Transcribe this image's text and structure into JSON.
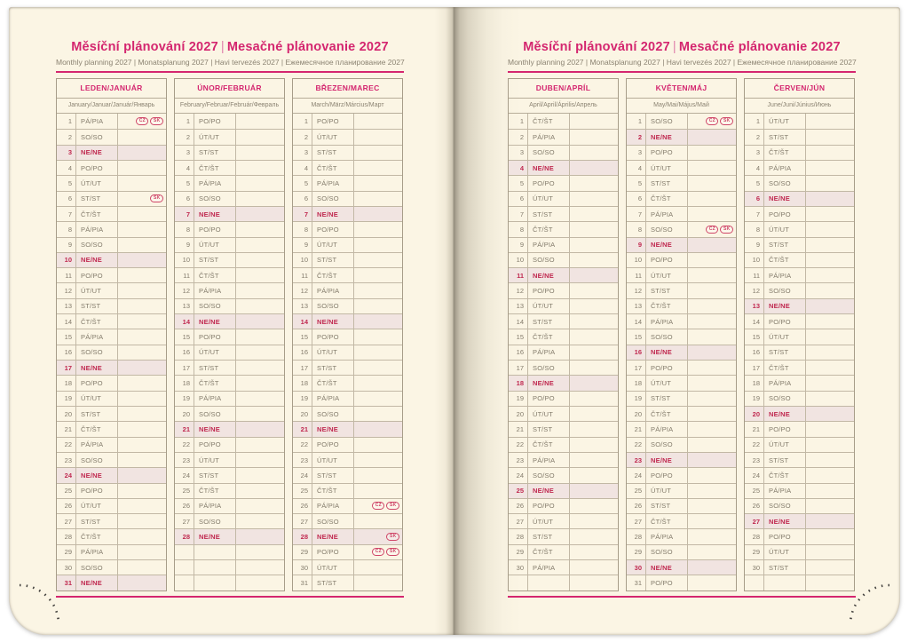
{
  "header": {
    "title_cz": "Měsíční plánování 2027",
    "title_sk": "Mesačné plánovanie 2027",
    "divider": "|",
    "subtitle": "Monthly planning 2027 | Monatsplanung 2027 | Havi tervezés 2027 | Ежемесячное планирование 2027"
  },
  "colors": {
    "accent_pink": "#d4266f",
    "highlight_row_bg": "#f1e4e1",
    "highlight_text": "#c02950",
    "body_text": "#837b6b",
    "grid_border": "#b7ad99",
    "page_background": "#fbf5e4",
    "holiday_badge": "#cf4668"
  },
  "weekday_legend": {
    "monday": "PO/PO",
    "tuesday": "ÚT/UT",
    "wednesday": "ST/ST",
    "thursday": "ČT/ŠT",
    "friday": "PÁ/PIA",
    "saturday": "SO/SO",
    "sunday": "NE/NE"
  },
  "pages": [
    {
      "months": [
        {
          "name": "LEDEN/JANUÁR",
          "subtitle": "January/Januar/Január/Январь",
          "rows": [
            {
              "d": 1,
              "w": "PÁ/PIA",
              "b": [
                "CZ",
                "SK"
              ]
            },
            {
              "d": 2,
              "w": "SO/SO"
            },
            {
              "d": 3,
              "w": "NE/NE",
              "h": 1
            },
            {
              "d": 4,
              "w": "PO/PO"
            },
            {
              "d": 5,
              "w": "ÚT/UT"
            },
            {
              "d": 6,
              "w": "ST/ST",
              "b": [
                "SK"
              ]
            },
            {
              "d": 7,
              "w": "ČT/ŠT"
            },
            {
              "d": 8,
              "w": "PÁ/PIA"
            },
            {
              "d": 9,
              "w": "SO/SO"
            },
            {
              "d": 10,
              "w": "NE/NE",
              "h": 1
            },
            {
              "d": 11,
              "w": "PO/PO"
            },
            {
              "d": 12,
              "w": "ÚT/UT"
            },
            {
              "d": 13,
              "w": "ST/ST"
            },
            {
              "d": 14,
              "w": "ČT/ŠT"
            },
            {
              "d": 15,
              "w": "PÁ/PIA"
            },
            {
              "d": 16,
              "w": "SO/SO"
            },
            {
              "d": 17,
              "w": "NE/NE",
              "h": 1
            },
            {
              "d": 18,
              "w": "PO/PO"
            },
            {
              "d": 19,
              "w": "ÚT/UT"
            },
            {
              "d": 20,
              "w": "ST/ST"
            },
            {
              "d": 21,
              "w": "ČT/ŠT"
            },
            {
              "d": 22,
              "w": "PÁ/PIA"
            },
            {
              "d": 23,
              "w": "SO/SO"
            },
            {
              "d": 24,
              "w": "NE/NE",
              "h": 1
            },
            {
              "d": 25,
              "w": "PO/PO"
            },
            {
              "d": 26,
              "w": "ÚT/UT"
            },
            {
              "d": 27,
              "w": "ST/ST"
            },
            {
              "d": 28,
              "w": "ČT/ŠT"
            },
            {
              "d": 29,
              "w": "PÁ/PIA"
            },
            {
              "d": 30,
              "w": "SO/SO"
            },
            {
              "d": 31,
              "w": "NE/NE",
              "h": 1
            }
          ]
        },
        {
          "name": "ÚNOR/FEBRUÁR",
          "subtitle": "February/Februar/Február/Февраль",
          "rows": [
            {
              "d": 1,
              "w": "PO/PO"
            },
            {
              "d": 2,
              "w": "ÚT/UT"
            },
            {
              "d": 3,
              "w": "ST/ST"
            },
            {
              "d": 4,
              "w": "ČT/ŠT"
            },
            {
              "d": 5,
              "w": "PÁ/PIA"
            },
            {
              "d": 6,
              "w": "SO/SO"
            },
            {
              "d": 7,
              "w": "NE/NE",
              "h": 1
            },
            {
              "d": 8,
              "w": "PO/PO"
            },
            {
              "d": 9,
              "w": "ÚT/UT"
            },
            {
              "d": 10,
              "w": "ST/ST"
            },
            {
              "d": 11,
              "w": "ČT/ŠT"
            },
            {
              "d": 12,
              "w": "PÁ/PIA"
            },
            {
              "d": 13,
              "w": "SO/SO"
            },
            {
              "d": 14,
              "w": "NE/NE",
              "h": 1
            },
            {
              "d": 15,
              "w": "PO/PO"
            },
            {
              "d": 16,
              "w": "ÚT/UT"
            },
            {
              "d": 17,
              "w": "ST/ST"
            },
            {
              "d": 18,
              "w": "ČT/ŠT"
            },
            {
              "d": 19,
              "w": "PÁ/PIA"
            },
            {
              "d": 20,
              "w": "SO/SO"
            },
            {
              "d": 21,
              "w": "NE/NE",
              "h": 1
            },
            {
              "d": 22,
              "w": "PO/PO"
            },
            {
              "d": 23,
              "w": "ÚT/UT"
            },
            {
              "d": 24,
              "w": "ST/ST"
            },
            {
              "d": 25,
              "w": "ČT/ŠT"
            },
            {
              "d": 26,
              "w": "PÁ/PIA"
            },
            {
              "d": 27,
              "w": "SO/SO"
            },
            {
              "d": 28,
              "w": "NE/NE",
              "h": 1
            },
            null,
            null,
            null
          ]
        },
        {
          "name": "BŘEZEN/MAREC",
          "subtitle": "March/März/Március/Март",
          "rows": [
            {
              "d": 1,
              "w": "PO/PO"
            },
            {
              "d": 2,
              "w": "ÚT/UT"
            },
            {
              "d": 3,
              "w": "ST/ST"
            },
            {
              "d": 4,
              "w": "ČT/ŠT"
            },
            {
              "d": 5,
              "w": "PÁ/PIA"
            },
            {
              "d": 6,
              "w": "SO/SO"
            },
            {
              "d": 7,
              "w": "NE/NE",
              "h": 1
            },
            {
              "d": 8,
              "w": "PO/PO"
            },
            {
              "d": 9,
              "w": "ÚT/UT"
            },
            {
              "d": 10,
              "w": "ST/ST"
            },
            {
              "d": 11,
              "w": "ČT/ŠT"
            },
            {
              "d": 12,
              "w": "PÁ/PIA"
            },
            {
              "d": 13,
              "w": "SO/SO"
            },
            {
              "d": 14,
              "w": "NE/NE",
              "h": 1
            },
            {
              "d": 15,
              "w": "PO/PO"
            },
            {
              "d": 16,
              "w": "ÚT/UT"
            },
            {
              "d": 17,
              "w": "ST/ST"
            },
            {
              "d": 18,
              "w": "ČT/ŠT"
            },
            {
              "d": 19,
              "w": "PÁ/PIA"
            },
            {
              "d": 20,
              "w": "SO/SO"
            },
            {
              "d": 21,
              "w": "NE/NE",
              "h": 1
            },
            {
              "d": 22,
              "w": "PO/PO"
            },
            {
              "d": 23,
              "w": "ÚT/UT"
            },
            {
              "d": 24,
              "w": "ST/ST"
            },
            {
              "d": 25,
              "w": "ČT/ŠT"
            },
            {
              "d": 26,
              "w": "PÁ/PIA",
              "b": [
                "CZ",
                "SK"
              ]
            },
            {
              "d": 27,
              "w": "SO/SO"
            },
            {
              "d": 28,
              "w": "NE/NE",
              "h": 1,
              "b": [
                "SK"
              ]
            },
            {
              "d": 29,
              "w": "PO/PO",
              "b": [
                "CZ",
                "SK"
              ]
            },
            {
              "d": 30,
              "w": "ÚT/UT"
            },
            {
              "d": 31,
              "w": "ST/ST"
            }
          ]
        }
      ]
    },
    {
      "months": [
        {
          "name": "DUBEN/APRÍL",
          "subtitle": "April/April/Április/Апрель",
          "rows": [
            {
              "d": 1,
              "w": "ČT/ŠT"
            },
            {
              "d": 2,
              "w": "PÁ/PIA"
            },
            {
              "d": 3,
              "w": "SO/SO"
            },
            {
              "d": 4,
              "w": "NE/NE",
              "h": 1
            },
            {
              "d": 5,
              "w": "PO/PO"
            },
            {
              "d": 6,
              "w": "ÚT/UT"
            },
            {
              "d": 7,
              "w": "ST/ST"
            },
            {
              "d": 8,
              "w": "ČT/ŠT"
            },
            {
              "d": 9,
              "w": "PÁ/PIA"
            },
            {
              "d": 10,
              "w": "SO/SO"
            },
            {
              "d": 11,
              "w": "NE/NE",
              "h": 1
            },
            {
              "d": 12,
              "w": "PO/PO"
            },
            {
              "d": 13,
              "w": "ÚT/UT"
            },
            {
              "d": 14,
              "w": "ST/ST"
            },
            {
              "d": 15,
              "w": "ČT/ŠT"
            },
            {
              "d": 16,
              "w": "PÁ/PIA"
            },
            {
              "d": 17,
              "w": "SO/SO"
            },
            {
              "d": 18,
              "w": "NE/NE",
              "h": 1
            },
            {
              "d": 19,
              "w": "PO/PO"
            },
            {
              "d": 20,
              "w": "ÚT/UT"
            },
            {
              "d": 21,
              "w": "ST/ST"
            },
            {
              "d": 22,
              "w": "ČT/ŠT"
            },
            {
              "d": 23,
              "w": "PÁ/PIA"
            },
            {
              "d": 24,
              "w": "SO/SO"
            },
            {
              "d": 25,
              "w": "NE/NE",
              "h": 1
            },
            {
              "d": 26,
              "w": "PO/PO"
            },
            {
              "d": 27,
              "w": "ÚT/UT"
            },
            {
              "d": 28,
              "w": "ST/ST"
            },
            {
              "d": 29,
              "w": "ČT/ŠT"
            },
            {
              "d": 30,
              "w": "PÁ/PIA"
            },
            null
          ]
        },
        {
          "name": "KVĚTEN/MÁJ",
          "subtitle": "May/Mai/Május/Май",
          "rows": [
            {
              "d": 1,
              "w": "SO/SO",
              "b": [
                "CZ",
                "SK"
              ]
            },
            {
              "d": 2,
              "w": "NE/NE",
              "h": 1
            },
            {
              "d": 3,
              "w": "PO/PO"
            },
            {
              "d": 4,
              "w": "ÚT/UT"
            },
            {
              "d": 5,
              "w": "ST/ST"
            },
            {
              "d": 6,
              "w": "ČT/ŠT"
            },
            {
              "d": 7,
              "w": "PÁ/PIA"
            },
            {
              "d": 8,
              "w": "SO/SO",
              "b": [
                "CZ",
                "SK"
              ]
            },
            {
              "d": 9,
              "w": "NE/NE",
              "h": 1
            },
            {
              "d": 10,
              "w": "PO/PO"
            },
            {
              "d": 11,
              "w": "ÚT/UT"
            },
            {
              "d": 12,
              "w": "ST/ST"
            },
            {
              "d": 13,
              "w": "ČT/ŠT"
            },
            {
              "d": 14,
              "w": "PÁ/PIA"
            },
            {
              "d": 15,
              "w": "SO/SO"
            },
            {
              "d": 16,
              "w": "NE/NE",
              "h": 1
            },
            {
              "d": 17,
              "w": "PO/PO"
            },
            {
              "d": 18,
              "w": "ÚT/UT"
            },
            {
              "d": 19,
              "w": "ST/ST"
            },
            {
              "d": 20,
              "w": "ČT/ŠT"
            },
            {
              "d": 21,
              "w": "PÁ/PIA"
            },
            {
              "d": 22,
              "w": "SO/SO"
            },
            {
              "d": 23,
              "w": "NE/NE",
              "h": 1
            },
            {
              "d": 24,
              "w": "PO/PO"
            },
            {
              "d": 25,
              "w": "ÚT/UT"
            },
            {
              "d": 26,
              "w": "ST/ST"
            },
            {
              "d": 27,
              "w": "ČT/ŠT"
            },
            {
              "d": 28,
              "w": "PÁ/PIA"
            },
            {
              "d": 29,
              "w": "SO/SO"
            },
            {
              "d": 30,
              "w": "NE/NE",
              "h": 1
            },
            {
              "d": 31,
              "w": "PO/PO"
            }
          ]
        },
        {
          "name": "ČERVEN/JÚN",
          "subtitle": "June/Juni/Június/Июнь",
          "rows": [
            {
              "d": 1,
              "w": "ÚT/UT"
            },
            {
              "d": 2,
              "w": "ST/ST"
            },
            {
              "d": 3,
              "w": "ČT/ŠT"
            },
            {
              "d": 4,
              "w": "PÁ/PIA"
            },
            {
              "d": 5,
              "w": "SO/SO"
            },
            {
              "d": 6,
              "w": "NE/NE",
              "h": 1
            },
            {
              "d": 7,
              "w": "PO/PO"
            },
            {
              "d": 8,
              "w": "ÚT/UT"
            },
            {
              "d": 9,
              "w": "ST/ST"
            },
            {
              "d": 10,
              "w": "ČT/ŠT"
            },
            {
              "d": 11,
              "w": "PÁ/PIA"
            },
            {
              "d": 12,
              "w": "SO/SO"
            },
            {
              "d": 13,
              "w": "NE/NE",
              "h": 1
            },
            {
              "d": 14,
              "w": "PO/PO"
            },
            {
              "d": 15,
              "w": "ÚT/UT"
            },
            {
              "d": 16,
              "w": "ST/ST"
            },
            {
              "d": 17,
              "w": "ČT/ŠT"
            },
            {
              "d": 18,
              "w": "PÁ/PIA"
            },
            {
              "d": 19,
              "w": "SO/SO"
            },
            {
              "d": 20,
              "w": "NE/NE",
              "h": 1
            },
            {
              "d": 21,
              "w": "PO/PO"
            },
            {
              "d": 22,
              "w": "ÚT/UT"
            },
            {
              "d": 23,
              "w": "ST/ST"
            },
            {
              "d": 24,
              "w": "ČT/ŠT"
            },
            {
              "d": 25,
              "w": "PÁ/PIA"
            },
            {
              "d": 26,
              "w": "SO/SO"
            },
            {
              "d": 27,
              "w": "NE/NE",
              "h": 1
            },
            {
              "d": 28,
              "w": "PO/PO"
            },
            {
              "d": 29,
              "w": "ÚT/UT"
            },
            {
              "d": 30,
              "w": "ST/ST"
            },
            null
          ]
        }
      ]
    }
  ]
}
